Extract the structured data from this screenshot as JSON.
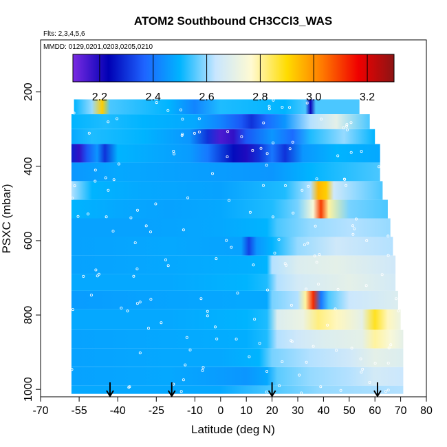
{
  "chart_data": {
    "type": "heatmap",
    "title": "ATOM2 Southbound CH3CCl3_WAS",
    "flights_note": "Flts: 2,3,4,5,6",
    "dates_note": "MMDD: 0129,0201,0203,0205,0210",
    "xlabel": "Latitude (deg N)",
    "ylabel": "PSXC (mbar)",
    "xlim": [
      -70,
      80
    ],
    "ylim": [
      1020,
      60
    ],
    "x_ticks": [
      -70,
      -55,
      -40,
      -25,
      -10,
      0,
      10,
      20,
      30,
      40,
      50,
      60,
      70,
      80
    ],
    "x_tick_labels": [
      "-70",
      "-55",
      "-40",
      "-25",
      "-10",
      "0",
      "10",
      "20",
      "30",
      "40",
      "50",
      "60",
      "70",
      "80"
    ],
    "y_ticks": [
      200,
      400,
      600,
      800,
      1000
    ],
    "y_tick_labels": [
      "200",
      "400",
      "600",
      "800",
      "1000"
    ],
    "colorbar": {
      "range": [
        2.1,
        3.3
      ],
      "ticks": [
        2.2,
        2.4,
        2.6,
        2.8,
        3.0,
        3.2
      ],
      "tick_labels": [
        "2.2",
        "2.4",
        "2.6",
        "2.8",
        "3.0",
        "3.2"
      ],
      "colors": [
        "#7a2be2",
        "#0000b4",
        "#1e64ff",
        "#00b4ff",
        "#c8e6ff",
        "#fffad2",
        "#ffdc00",
        "#ff7800",
        "#f00000",
        "#8c1414"
      ]
    },
    "profile_latitudes": [
      -43,
      -19,
      20,
      61
    ],
    "layers": [
      {
        "p_top": 220,
        "p_bot": 260,
        "lat_min": -57,
        "lat_max": 54,
        "stops": [
          [
            -57,
            2.5
          ],
          [
            -50,
            2.6
          ],
          [
            -46,
            2.92
          ],
          [
            -43,
            2.55
          ],
          [
            -20,
            2.5
          ],
          [
            -10,
            2.42
          ],
          [
            0,
            2.52
          ],
          [
            25,
            2.5
          ],
          [
            33,
            2.55
          ],
          [
            35,
            2.22
          ],
          [
            37,
            2.55
          ],
          [
            54,
            2.55
          ]
        ]
      },
      {
        "p_top": 260,
        "p_bot": 300,
        "lat_min": -58,
        "lat_max": 58,
        "stops": [
          [
            -58,
            2.5
          ],
          [
            -45,
            2.52
          ],
          [
            -30,
            2.5
          ],
          [
            -10,
            2.48
          ],
          [
            0,
            2.42
          ],
          [
            8,
            2.35
          ],
          [
            12,
            2.3
          ],
          [
            18,
            2.38
          ],
          [
            25,
            2.45
          ],
          [
            35,
            2.62
          ],
          [
            45,
            2.7
          ],
          [
            58,
            2.55
          ]
        ]
      },
      {
        "p_top": 300,
        "p_bot": 340,
        "lat_min": -58,
        "lat_max": 60,
        "stops": [
          [
            -58,
            2.48
          ],
          [
            -50,
            2.52
          ],
          [
            -30,
            2.5
          ],
          [
            -12,
            2.45
          ],
          [
            -5,
            2.3
          ],
          [
            0,
            2.15
          ],
          [
            5,
            2.18
          ],
          [
            10,
            2.35
          ],
          [
            20,
            2.45
          ],
          [
            28,
            2.38
          ],
          [
            35,
            2.52
          ],
          [
            48,
            2.6
          ],
          [
            60,
            2.5
          ]
        ]
      },
      {
        "p_top": 340,
        "p_bot": 390,
        "lat_min": -58,
        "lat_max": 62,
        "stops": [
          [
            -58,
            2.28
          ],
          [
            -55,
            2.18
          ],
          [
            -52,
            2.35
          ],
          [
            -48,
            2.45
          ],
          [
            -45,
            2.3
          ],
          [
            -40,
            2.5
          ],
          [
            -25,
            2.48
          ],
          [
            -12,
            2.46
          ],
          [
            -5,
            2.4
          ],
          [
            5,
            2.25
          ],
          [
            10,
            2.2
          ],
          [
            15,
            2.3
          ],
          [
            20,
            2.4
          ],
          [
            25,
            2.3
          ],
          [
            32,
            2.45
          ],
          [
            45,
            2.5
          ],
          [
            62,
            2.48
          ]
        ]
      },
      {
        "p_top": 390,
        "p_bot": 440,
        "lat_min": -58,
        "lat_max": 62,
        "stops": [
          [
            -58,
            2.45
          ],
          [
            -40,
            2.48
          ],
          [
            -20,
            2.47
          ],
          [
            0,
            2.46
          ],
          [
            20,
            2.45
          ],
          [
            35,
            2.5
          ],
          [
            45,
            2.52
          ],
          [
            62,
            2.55
          ]
        ]
      },
      {
        "p_top": 440,
        "p_bot": 490,
        "lat_min": -58,
        "lat_max": 63,
        "stops": [
          [
            -58,
            2.62
          ],
          [
            -50,
            2.5
          ],
          [
            -30,
            2.48
          ],
          [
            0,
            2.47
          ],
          [
            25,
            2.52
          ],
          [
            35,
            2.62
          ],
          [
            38,
            2.95
          ],
          [
            41,
            2.92
          ],
          [
            44,
            2.65
          ],
          [
            52,
            2.6
          ],
          [
            63,
            2.55
          ]
        ]
      },
      {
        "p_top": 490,
        "p_bot": 540,
        "lat_min": -58,
        "lat_max": 65,
        "stops": [
          [
            -58,
            2.5
          ],
          [
            -40,
            2.48
          ],
          [
            -20,
            2.47
          ],
          [
            0,
            2.48
          ],
          [
            20,
            2.52
          ],
          [
            30,
            2.58
          ],
          [
            36,
            2.75
          ],
          [
            39,
            3.1
          ],
          [
            42,
            2.8
          ],
          [
            50,
            2.58
          ],
          [
            65,
            2.55
          ]
        ]
      },
      {
        "p_top": 540,
        "p_bot": 590,
        "lat_min": -58,
        "lat_max": 66,
        "stops": [
          [
            -58,
            2.47
          ],
          [
            -30,
            2.47
          ],
          [
            0,
            2.48
          ],
          [
            18,
            2.5
          ],
          [
            22,
            2.55
          ],
          [
            35,
            2.6
          ],
          [
            50,
            2.62
          ],
          [
            66,
            2.6
          ]
        ]
      },
      {
        "p_top": 590,
        "p_bot": 640,
        "lat_min": -58,
        "lat_max": 67,
        "stops": [
          [
            -58,
            2.47
          ],
          [
            -20,
            2.48
          ],
          [
            8,
            2.47
          ],
          [
            11,
            2.32
          ],
          [
            14,
            2.45
          ],
          [
            20,
            2.5
          ],
          [
            30,
            2.6
          ],
          [
            45,
            2.65
          ],
          [
            67,
            2.62
          ]
        ]
      },
      {
        "p_top": 640,
        "p_bot": 690,
        "lat_min": -58,
        "lat_max": 68,
        "stops": [
          [
            -58,
            2.47
          ],
          [
            -20,
            2.48
          ],
          [
            10,
            2.49
          ],
          [
            18,
            2.5
          ],
          [
            20,
            2.62
          ],
          [
            30,
            2.68
          ],
          [
            45,
            2.7
          ],
          [
            68,
            2.65
          ]
        ]
      },
      {
        "p_top": 690,
        "p_bot": 735,
        "lat_min": -58,
        "lat_max": 68,
        "stops": [
          [
            -58,
            2.48
          ],
          [
            -20,
            2.48
          ],
          [
            10,
            2.5
          ],
          [
            18,
            2.52
          ],
          [
            22,
            2.62
          ],
          [
            30,
            2.66
          ],
          [
            50,
            2.7
          ],
          [
            68,
            2.66
          ]
        ]
      },
      {
        "p_top": 735,
        "p_bot": 785,
        "lat_min": -58,
        "lat_max": 69,
        "stops": [
          [
            -58,
            2.46
          ],
          [
            -30,
            2.47
          ],
          [
            10,
            2.48
          ],
          [
            18,
            2.48
          ],
          [
            20,
            2.58
          ],
          [
            30,
            2.62
          ],
          [
            33,
            2.8
          ],
          [
            36,
            3.12
          ],
          [
            39,
            2.4
          ],
          [
            42,
            2.55
          ],
          [
            50,
            2.64
          ],
          [
            69,
            2.68
          ]
        ]
      },
      {
        "p_top": 785,
        "p_bot": 840,
        "lat_min": -58,
        "lat_max": 70,
        "stops": [
          [
            -58,
            2.48
          ],
          [
            -20,
            2.48
          ],
          [
            10,
            2.5
          ],
          [
            18,
            2.52
          ],
          [
            22,
            2.68
          ],
          [
            32,
            2.72
          ],
          [
            38,
            2.82
          ],
          [
            45,
            2.78
          ],
          [
            55,
            2.7
          ],
          [
            60,
            2.88
          ],
          [
            65,
            2.78
          ],
          [
            70,
            2.72
          ]
        ]
      },
      {
        "p_top": 840,
        "p_bot": 890,
        "lat_min": -58,
        "lat_max": 71,
        "stops": [
          [
            -58,
            2.47
          ],
          [
            -20,
            2.48
          ],
          [
            10,
            2.49
          ],
          [
            18,
            2.52
          ],
          [
            22,
            2.62
          ],
          [
            30,
            2.65
          ],
          [
            40,
            2.68
          ],
          [
            55,
            2.7
          ],
          [
            60,
            2.8
          ],
          [
            66,
            2.75
          ],
          [
            71,
            2.7
          ]
        ]
      },
      {
        "p_top": 890,
        "p_bot": 940,
        "lat_min": -58,
        "lat_max": 71,
        "stops": [
          [
            -58,
            2.47
          ],
          [
            -20,
            2.48
          ],
          [
            0,
            2.48
          ],
          [
            15,
            2.5
          ],
          [
            20,
            2.58
          ],
          [
            35,
            2.62
          ],
          [
            50,
            2.65
          ],
          [
            60,
            2.7
          ],
          [
            71,
            2.68
          ]
        ]
      },
      {
        "p_top": 940,
        "p_bot": 990,
        "lat_min": -58,
        "lat_max": 71,
        "stops": [
          [
            -58,
            2.47
          ],
          [
            -20,
            2.48
          ],
          [
            0,
            2.46
          ],
          [
            10,
            2.45
          ],
          [
            18,
            2.48
          ],
          [
            22,
            2.56
          ],
          [
            35,
            2.6
          ],
          [
            50,
            2.62
          ],
          [
            60,
            2.66
          ],
          [
            71,
            2.64
          ]
        ]
      },
      {
        "p_top": 990,
        "p_bot": 1012,
        "lat_min": -58,
        "lat_max": 71,
        "stops": [
          [
            -58,
            2.48
          ],
          [
            0,
            2.48
          ],
          [
            20,
            2.55
          ],
          [
            40,
            2.6
          ],
          [
            71,
            2.62
          ]
        ]
      }
    ]
  }
}
